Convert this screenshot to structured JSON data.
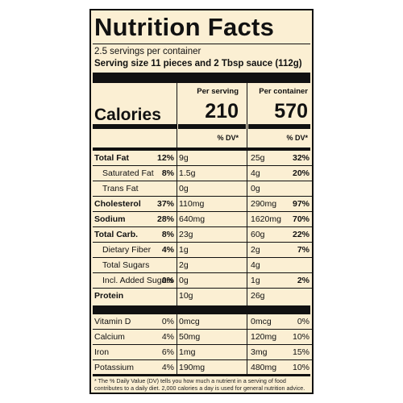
{
  "title": "Nutrition Facts",
  "servings_per_container": "2.5 servings per container",
  "serving_size": "Serving size 11 pieces and 2 Tbsp sauce (112g)",
  "per_serving_label": "Per serving",
  "per_container_label": "Per container",
  "calories_label": "Calories",
  "calories_per_serving": "210",
  "calories_per_container": "570",
  "dv_label": "% DV*",
  "nutrients": [
    {
      "name": "Total Fat",
      "bold": true,
      "indent": false,
      "amt1": "9g",
      "pct1": "12%",
      "amt2": "25g",
      "pct2": "32%",
      "pct_bold": true
    },
    {
      "name": "Saturated Fat",
      "bold": false,
      "indent": true,
      "amt1": "1.5g",
      "pct1": "8%",
      "amt2": "4g",
      "pct2": "20%",
      "pct_bold": true
    },
    {
      "name": "Trans Fat",
      "bold": false,
      "indent": true,
      "amt1": "0g",
      "pct1": "",
      "amt2": "0g",
      "pct2": "",
      "pct_bold": true
    },
    {
      "name": "Cholesterol",
      "bold": true,
      "indent": false,
      "amt1": "110mg",
      "pct1": "37%",
      "amt2": "290mg",
      "pct2": "97%",
      "pct_bold": true
    },
    {
      "name": "Sodium",
      "bold": true,
      "indent": false,
      "amt1": "640mg",
      "pct1": "28%",
      "amt2": "1620mg",
      "pct2": "70%",
      "pct_bold": true
    },
    {
      "name": "Total Carb.",
      "bold": true,
      "indent": false,
      "amt1": "23g",
      "pct1": "8%",
      "amt2": "60g",
      "pct2": "22%",
      "pct_bold": true
    },
    {
      "name": "Dietary Fiber",
      "bold": false,
      "indent": true,
      "amt1": "1g",
      "pct1": "4%",
      "amt2": "2g",
      "pct2": "7%",
      "pct_bold": true
    },
    {
      "name": "Total Sugars",
      "bold": false,
      "indent": true,
      "amt1": "2g",
      "pct1": "",
      "amt2": "4g",
      "pct2": "",
      "pct_bold": true
    },
    {
      "name": "Incl. Added Sugars",
      "bold": false,
      "indent": true,
      "amt1": "0g",
      "pct1": "0%",
      "amt2": "1g",
      "pct2": "2%",
      "pct_bold": true
    },
    {
      "name": "Protein",
      "bold": true,
      "indent": false,
      "amt1": "10g",
      "pct1": "",
      "amt2": "26g",
      "pct2": "",
      "pct_bold": true
    }
  ],
  "vitamins": [
    {
      "name": "Vitamin D",
      "amt1": "0mcg",
      "pct1": "0%",
      "amt2": "0mcg",
      "pct2": "0%"
    },
    {
      "name": "Calcium",
      "amt1": "50mg",
      "pct1": "4%",
      "amt2": "120mg",
      "pct2": "10%"
    },
    {
      "name": "Iron",
      "amt1": "1mg",
      "pct1": "6%",
      "amt2": "3mg",
      "pct2": "15%"
    },
    {
      "name": "Potassium",
      "amt1": "190mg",
      "pct1": "4%",
      "amt2": "480mg",
      "pct2": "10%"
    }
  ],
  "footnote": "* The % Daily Value (DV) tells you how much a nutrient in a serving of food contributes to a daily diet. 2,000 calories a day is used for general nutrition advice."
}
